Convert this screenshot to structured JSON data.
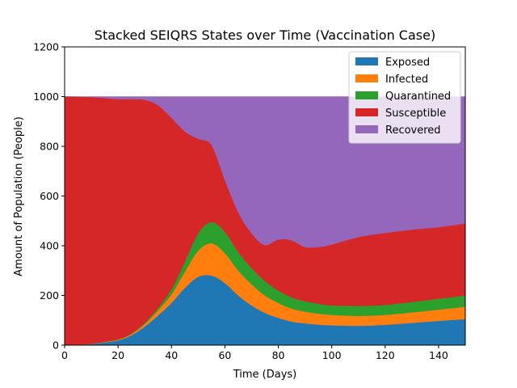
{
  "chart_data": {
    "type": "area",
    "stacked": true,
    "title": "Stacked SEIQRS States over Time (Vaccination Case)",
    "xlabel": "Time (Days)",
    "ylabel": "Amount of Population (People)",
    "xlim": [
      0,
      150
    ],
    "ylim": [
      0,
      1200
    ],
    "xticks": [
      0,
      20,
      40,
      60,
      80,
      100,
      120,
      140
    ],
    "yticks": [
      0,
      200,
      400,
      600,
      800,
      1000,
      1200
    ],
    "grid": false,
    "legend_position": "top-right",
    "x": [
      0,
      10,
      20,
      25,
      30,
      35,
      40,
      45,
      50,
      55,
      60,
      65,
      70,
      75,
      80,
      85,
      90,
      95,
      100,
      110,
      120,
      130,
      140,
      150
    ],
    "series": [
      {
        "name": "Exposed",
        "color": "#1f77b4",
        "values": [
          0,
          5,
          20,
          40,
          75,
          120,
          170,
          230,
          275,
          280,
          250,
          200,
          160,
          130,
          110,
          95,
          88,
          83,
          80,
          78,
          82,
          90,
          98,
          105
        ]
      },
      {
        "name": "Infected",
        "color": "#ff7f0e",
        "values": [
          0,
          1,
          3,
          5,
          10,
          20,
          35,
          65,
          105,
          130,
          120,
          100,
          85,
          70,
          60,
          52,
          47,
          44,
          42,
          40,
          40,
          42,
          45,
          50
        ]
      },
      {
        "name": "Quarantined",
        "color": "#2ca02c",
        "values": [
          0,
          0,
          1,
          2,
          5,
          10,
          20,
          40,
          70,
          85,
          85,
          75,
          65,
          58,
          50,
          45,
          42,
          40,
          38,
          40,
          40,
          42,
          44,
          45
        ]
      },
      {
        "name": "Susceptible",
        "color": "#d62728",
        "values": [
          1000,
          992,
          966,
          943,
          897,
          815,
          690,
          525,
          380,
          310,
          210,
          160,
          140,
          145,
          205,
          230,
          218,
          228,
          245,
          277,
          290,
          291,
          288,
          290
        ]
      },
      {
        "name": "Recovered",
        "color": "#9467bd",
        "values": [
          0,
          2,
          10,
          10,
          13,
          35,
          85,
          140,
          170,
          195,
          335,
          465,
          550,
          597,
          575,
          578,
          605,
          605,
          595,
          565,
          548,
          535,
          525,
          510
        ]
      }
    ]
  }
}
